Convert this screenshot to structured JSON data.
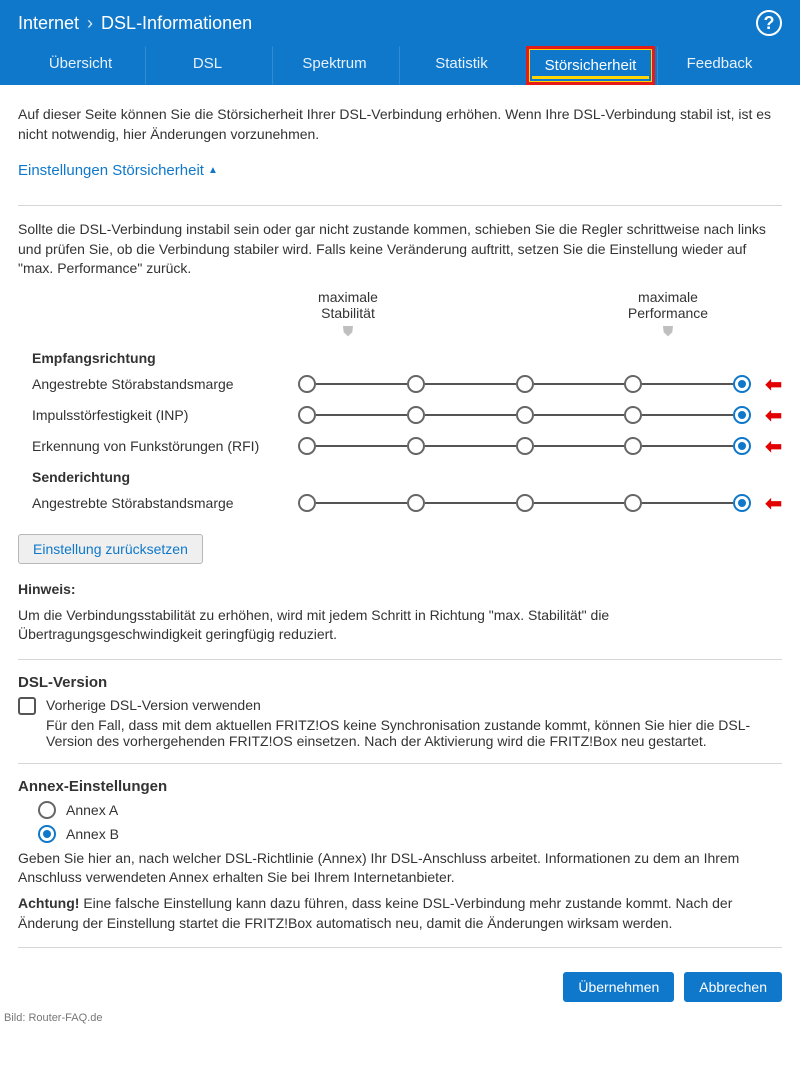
{
  "breadcrumb": {
    "root": "Internet",
    "page": "DSL-Informationen"
  },
  "help_glyph": "?",
  "tabs": [
    {
      "label": "Übersicht"
    },
    {
      "label": "DSL"
    },
    {
      "label": "Spektrum"
    },
    {
      "label": "Statistik"
    },
    {
      "label": "Störsicherheit",
      "active": true
    },
    {
      "label": "Feedback"
    }
  ],
  "intro": "Auf dieser Seite können Sie die Störsicherheit Ihrer DSL-Verbindung erhöhen. Wenn Ihre DSL-Verbindung stabil ist, ist es nicht notwendig, hier Änderungen vorzunehmen.",
  "section_toggle": "Einstellungen Störsicherheit",
  "explain": "Sollte die DSL-Verbindung instabil sein oder gar nicht zustande kommen, schieben Sie die Regler schrittweise nach links und prüfen Sie, ob die Verbindung stabiler wird. Falls keine Veränderung auftritt, setzen Sie die Einstellung wieder auf \"max. Performance\" zurück.",
  "scale": {
    "left_line1": "maximale",
    "left_line2": "Stabilität",
    "right_line1": "maximale",
    "right_line2": "Performance",
    "shield": "⛊"
  },
  "groups": {
    "rx_title": "Empfangsrichtung",
    "tx_title": "Senderichtung"
  },
  "sliders": {
    "steps": 5,
    "rows": [
      {
        "label": "Angestrebte Störabstandsmarge",
        "value": 4
      },
      {
        "label": "Impulsstörfestigkeit (INP)",
        "value": 4
      },
      {
        "label": "Erkennung von Funkstörungen (RFI)",
        "value": 4
      }
    ],
    "tx_rows": [
      {
        "label": "Angestrebte Störabstandsmarge",
        "value": 4
      }
    ]
  },
  "reset_button": "Einstellung zurücksetzen",
  "hint": {
    "title": "Hinweis:",
    "body": "Um die Verbindungsstabilität zu erhöhen, wird mit jedem Schritt in Richtung \"max. Stabilität\" die Übertragungsgeschwindigkeit geringfügig reduziert."
  },
  "dsl_version": {
    "title": "DSL-Version",
    "checkbox_label": "Vorherige DSL-Version verwenden",
    "checked": false,
    "desc": "Für den Fall, dass mit dem aktuellen FRITZ!OS keine Synchronisation zustande kommt, können Sie hier die DSL-Version des vorhergehenden FRITZ!OS einsetzen. Nach der Aktivierung wird die FRITZ!Box neu gestartet."
  },
  "annex": {
    "title": "Annex-Einstellungen",
    "options": [
      {
        "label": "Annex A",
        "selected": false
      },
      {
        "label": "Annex B",
        "selected": true
      }
    ],
    "desc": "Geben Sie hier an, nach welcher DSL-Richtlinie (Annex) Ihr DSL-Anschluss arbeitet. Informationen zu dem an Ihrem Anschluss verwendeten Annex erhalten Sie bei Ihrem Internetanbieter.",
    "warn_label": "Achtung!",
    "warn": " Eine falsche Einstellung kann dazu führen, dass keine DSL-Verbindung mehr zustande kommt. Nach der Änderung der Einstellung startet die FRITZ!Box automatisch neu, damit die Änderungen wirksam werden."
  },
  "footer": {
    "apply": "Übernehmen",
    "cancel": "Abbrechen"
  },
  "credit": "Bild: Router-FAQ.de",
  "colors": {
    "primary": "#0f78cb",
    "highlight_border": "#e41b17",
    "highlight_underline": "#ffd400",
    "arrow": "#e20000"
  }
}
